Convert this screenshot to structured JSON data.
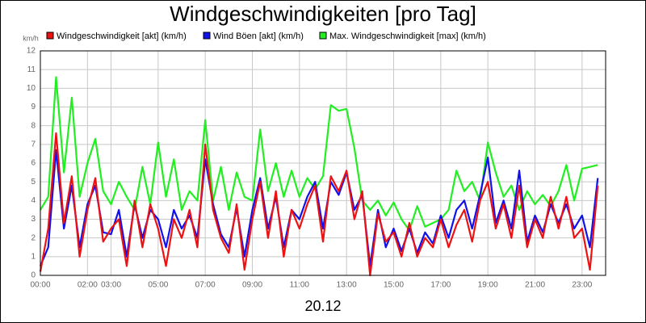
{
  "chart_data": {
    "type": "line",
    "title": "Windgeschwindigkeiten [pro Tag]",
    "y_unit": "km/h",
    "x_label": "20.12",
    "x": [
      "00:00",
      "00:20",
      "00:40",
      "01:00",
      "01:20",
      "01:40",
      "02:00",
      "02:20",
      "02:40",
      "03:00",
      "03:20",
      "03:40",
      "04:00",
      "04:20",
      "04:40",
      "05:00",
      "05:20",
      "05:40",
      "06:00",
      "06:20",
      "06:40",
      "07:00",
      "07:20",
      "07:40",
      "08:00",
      "08:20",
      "08:40",
      "09:00",
      "09:20",
      "09:40",
      "10:00",
      "10:20",
      "10:40",
      "11:00",
      "11:20",
      "11:40",
      "12:00",
      "12:20",
      "12:40",
      "13:00",
      "13:20",
      "13:40",
      "14:00",
      "14:20",
      "14:40",
      "15:00",
      "15:20",
      "15:40",
      "16:00",
      "16:20",
      "16:40",
      "17:00",
      "17:20",
      "17:40",
      "18:00",
      "18:20",
      "18:40",
      "19:00",
      "19:20",
      "19:40",
      "20:00",
      "20:20",
      "20:40",
      "21:00",
      "21:20",
      "21:40",
      "22:00",
      "22:20",
      "22:40",
      "23:00",
      "23:20",
      "23:40"
    ],
    "series": [
      {
        "name": "Windgeschwindigkeit [akt] (km/h)",
        "color": "#ee1111",
        "values": [
          0.2,
          2.5,
          7.6,
          2.8,
          5.3,
          1,
          3.5,
          5.2,
          1.8,
          2.5,
          3,
          0.5,
          4,
          1.5,
          3.8,
          2.5,
          0.5,
          3,
          2,
          3.5,
          1.5,
          7,
          3.5,
          2,
          1.2,
          3.8,
          0.3,
          3,
          5,
          2,
          4.5,
          1,
          3.5,
          2.5,
          3.8,
          4.8,
          1.8,
          5.3,
          4.5,
          5.6,
          3,
          4.5,
          0,
          3.3,
          1.8,
          2.3,
          1,
          2.8,
          1,
          2,
          1.5,
          3,
          1.5,
          2.7,
          3.5,
          1.8,
          4,
          5,
          2.5,
          3.8,
          2,
          4.8,
          1.5,
          3,
          2,
          4.2,
          2.5,
          4.2,
          2,
          2.5,
          0.3,
          4.8
        ]
      },
      {
        "name": "Wind Böen [akt] (km/h)",
        "color": "#1111ee",
        "values": [
          0.5,
          1.5,
          6.7,
          2.5,
          4.8,
          1.5,
          3.8,
          4.8,
          2.3,
          2.2,
          3.5,
          1,
          3.8,
          2,
          3.5,
          3,
          1.5,
          3.5,
          2.5,
          3.2,
          2,
          6.2,
          3.8,
          2.2,
          1.5,
          3.6,
          1,
          3.5,
          5.2,
          2.5,
          4.2,
          1.5,
          3.5,
          3,
          4.2,
          5,
          2.5,
          5,
          4.3,
          5.5,
          3.5,
          4.3,
          0.5,
          3.5,
          1.5,
          2.5,
          1.3,
          2.5,
          1.2,
          2.3,
          1.7,
          3.2,
          2,
          3.5,
          4,
          2.5,
          4.3,
          6.3,
          2.8,
          4,
          2.5,
          5.6,
          1.8,
          3.2,
          2.3,
          3.8,
          2.8,
          3.8,
          2.5,
          3.2,
          1.5,
          5.2
        ]
      },
      {
        "name": "Max. Windgeschwindigkeit [max] (km/h)",
        "color": "#22ee22",
        "values": [
          3.5,
          4.2,
          10.6,
          5.5,
          9.5,
          4.2,
          6,
          7.3,
          4.5,
          3.8,
          5,
          4.2,
          3.5,
          5.8,
          3.8,
          7.1,
          4.2,
          6.2,
          3.5,
          4.5,
          4,
          8.3,
          4,
          5.8,
          3.5,
          5.5,
          4.2,
          4,
          7.8,
          4.5,
          6,
          4.2,
          5.6,
          4.2,
          5.2,
          4.6,
          5.3,
          9.1,
          8.8,
          8.9,
          6.8,
          4,
          3.5,
          4,
          3.2,
          3.9,
          3,
          2.4,
          3.7,
          2.6,
          2.8,
          3,
          3.5,
          5.6,
          4.5,
          5,
          4,
          7.1,
          5.5,
          4.2,
          4.8,
          3.5,
          4.5,
          3.8,
          4.3,
          3.7,
          4.5,
          5.9,
          4,
          5.7,
          5.8,
          5.9
        ]
      }
    ],
    "xlim": [
      "00:00",
      "24:00"
    ],
    "xticks": [
      "00:00",
      "02:00",
      "03:00",
      "05:00",
      "07:00",
      "09:00",
      "11:00",
      "13:00",
      "15:00",
      "17:00",
      "19:00",
      "21:00",
      "23:00"
    ],
    "ylim": [
      0,
      12
    ],
    "yticks": [
      0,
      1,
      2,
      3,
      4,
      5,
      6,
      7,
      8,
      9,
      10,
      11,
      12
    ],
    "grid": true
  }
}
